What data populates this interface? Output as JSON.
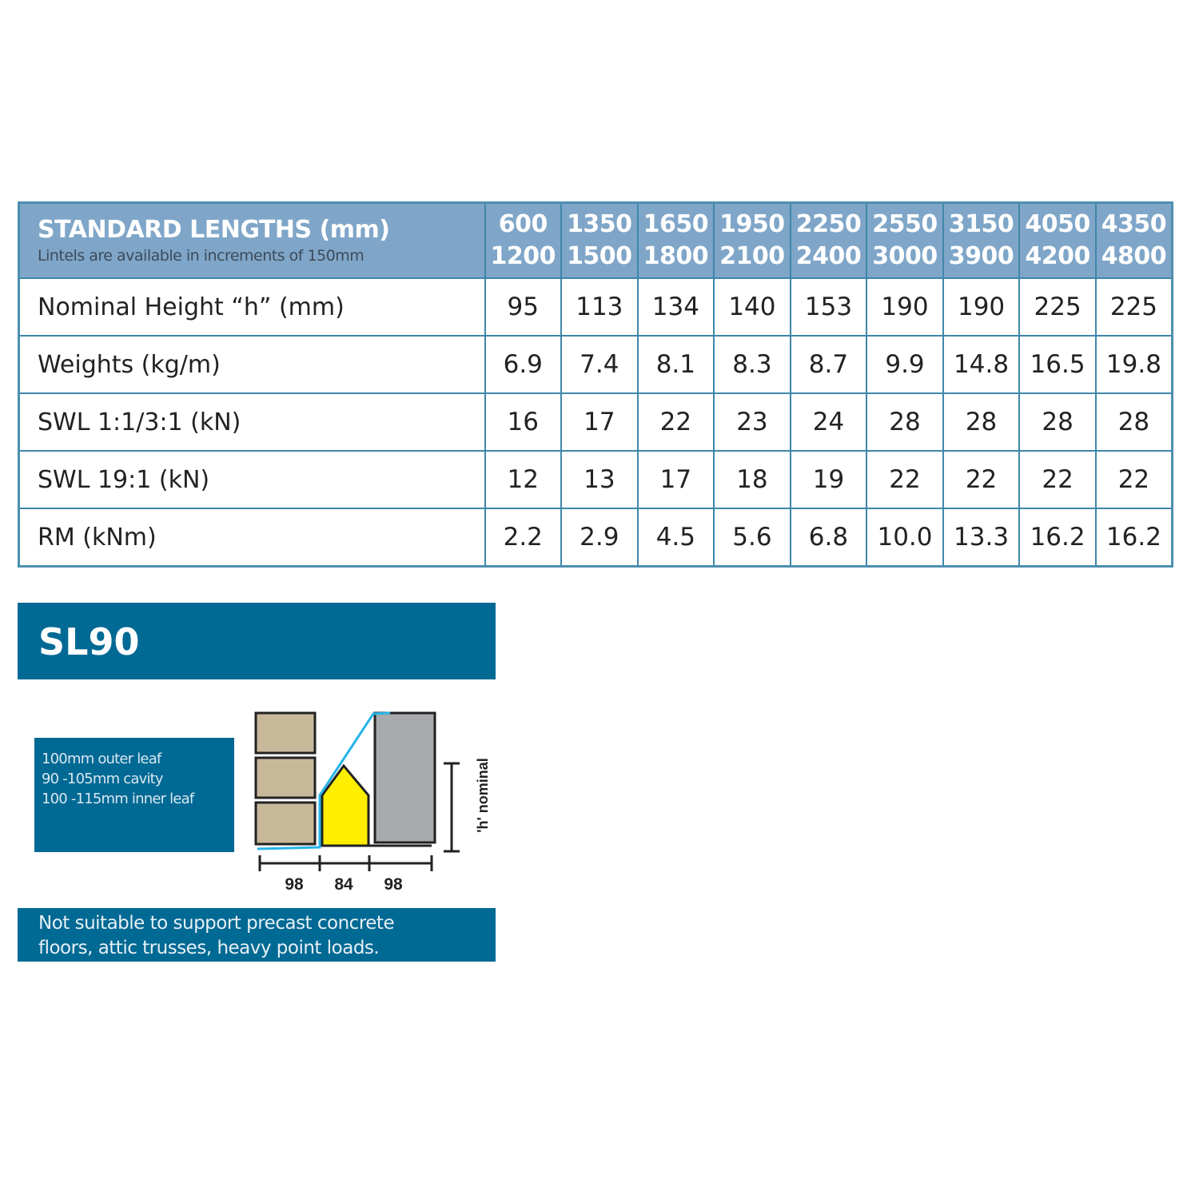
{
  "table": {
    "header": {
      "title": "STANDARD LENGTHS (mm)",
      "subtitle": "Lintels are available in increments of 150mm",
      "lengths": [
        [
          "600",
          "1200"
        ],
        [
          "1350",
          "1500"
        ],
        [
          "1650",
          "1800"
        ],
        [
          "1950",
          "2100"
        ],
        [
          "2250",
          "2400"
        ],
        [
          "2550",
          "3000"
        ],
        [
          "3150",
          "3900"
        ],
        [
          "4050",
          "4200"
        ],
        [
          "4350",
          "4800"
        ]
      ]
    },
    "rows": [
      {
        "label": "Nominal Height “h” (mm)",
        "values": [
          "95",
          "113",
          "134",
          "140",
          "153",
          "190",
          "190",
          "225",
          "225"
        ]
      },
      {
        "label": "Weights (kg/m)",
        "values": [
          "6.9",
          "7.4",
          "8.1",
          "8.3",
          "8.7",
          "9.9",
          "14.8",
          "16.5",
          "19.8"
        ]
      },
      {
        "label": "SWL 1:1/3:1 (kN)",
        "values": [
          "16",
          "17",
          "22",
          "23",
          "24",
          "28",
          "28",
          "28",
          "28"
        ]
      },
      {
        "label": "SWL 19:1 (kN)",
        "values": [
          "12",
          "13",
          "17",
          "18",
          "19",
          "22",
          "22",
          "22",
          "22"
        ]
      },
      {
        "label": "RM (kNm)",
        "values": [
          "2.2",
          "2.9",
          "4.5",
          "5.6",
          "6.8",
          "10.0",
          "13.3",
          "16.2",
          "16.2"
        ]
      }
    ]
  },
  "product": {
    "name": "SL90",
    "info": [
      "100mm outer leaf",
      "90 -105mm cavity",
      "100 -115mm inner leaf"
    ],
    "diagram": {
      "dims": [
        "98",
        "84",
        "98"
      ],
      "height_label": "'h' nominal"
    },
    "note": [
      "Not suitable to support precast concrete",
      "floors, attic trusses, heavy point loads."
    ]
  },
  "colors": {
    "header_bg": "#7fa6c8",
    "panel_bg": "#006994",
    "border": "#3f86aa",
    "brick": "#c8b89a",
    "lintel": "#ffee00",
    "block": "#a9aaad",
    "dpc": "#27b4e8"
  }
}
